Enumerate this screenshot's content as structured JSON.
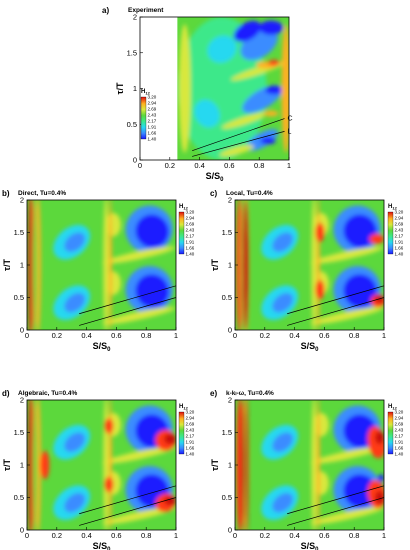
{
  "chart_data": [
    {
      "id": "a",
      "type": "heatmap",
      "panel_label": "a)",
      "title": "Experiment",
      "xlabel": "S/S",
      "xlabel_sub": "0",
      "ylabel": "τ/T",
      "xlim": [
        0,
        1
      ],
      "ylim": [
        0,
        2
      ],
      "x_ticks": [
        "0",
        "0.2",
        "0.4",
        "0.6",
        "0.8",
        "1"
      ],
      "y_ticks": [
        "0",
        "0.5",
        "1",
        "1.5",
        "2"
      ],
      "data_x_range": [
        0.25,
        1.0
      ],
      "colorbar": {
        "title": "H",
        "title_sub": "12",
        "levels": [
          "3.20",
          "2.94",
          "2.69",
          "2.43",
          "2.17",
          "1.91",
          "1.66",
          "1.40"
        ]
      },
      "lines": [
        {
          "label": "C",
          "x": [
            0.35,
            0.97
          ],
          "y": [
            0.13,
            0.58
          ]
        },
        {
          "label": "L",
          "x": [
            0.35,
            0.97
          ],
          "y": [
            0.05,
            0.4
          ]
        }
      ]
    },
    {
      "id": "b",
      "type": "heatmap",
      "panel_label": "b)",
      "title": "Direct, Tu=0.4%",
      "xlabel": "S/S",
      "xlabel_sub": "0",
      "ylabel": "τ/T",
      "xlim": [
        0,
        1
      ],
      "ylim": [
        0,
        2
      ],
      "x_ticks": [
        "0",
        "0.2",
        "0.4",
        "0.6",
        "0.8",
        "1"
      ],
      "y_ticks": [
        "0",
        "0.5",
        "1",
        "1.5",
        "2"
      ],
      "colorbar": {
        "title": "H",
        "title_sub": "12",
        "levels": [
          "3.20",
          "2.94",
          "2.69",
          "2.43",
          "2.17",
          "1.91",
          "1.66",
          "1.40"
        ]
      },
      "lines": [
        {
          "label": "",
          "x": [
            0.35,
            1.0
          ],
          "y": [
            0.25,
            0.68
          ]
        },
        {
          "label": "",
          "x": [
            0.35,
            1.0
          ],
          "y": [
            0.07,
            0.5
          ]
        }
      ]
    },
    {
      "id": "c",
      "type": "heatmap",
      "panel_label": "c)",
      "title": "Local, Tu=0.4%",
      "xlabel": "S/S",
      "xlabel_sub": "0",
      "ylabel": "τ/T",
      "xlim": [
        0,
        1
      ],
      "ylim": [
        0,
        2
      ],
      "x_ticks": [
        "0",
        "0.2",
        "0.4",
        "0.6",
        "0.8",
        "1"
      ],
      "y_ticks": [
        "0",
        "0.5",
        "1",
        "1.5",
        "2"
      ],
      "colorbar": {
        "title": "H",
        "title_sub": "12",
        "levels": [
          "3.20",
          "2.94",
          "2.69",
          "2.43",
          "2.17",
          "1.91",
          "1.66",
          "1.40"
        ]
      },
      "lines": [
        {
          "label": "",
          "x": [
            0.35,
            1.0
          ],
          "y": [
            0.25,
            0.68
          ]
        },
        {
          "label": "",
          "x": [
            0.35,
            1.0
          ],
          "y": [
            0.07,
            0.5
          ]
        }
      ]
    },
    {
      "id": "d",
      "type": "heatmap",
      "panel_label": "d)",
      "title": "Algebraic, Tu=0.4%",
      "xlabel": "S/S",
      "xlabel_sub": "0",
      "ylabel": "τ/T",
      "xlim": [
        0,
        1
      ],
      "ylim": [
        0,
        2
      ],
      "x_ticks": [
        "0",
        "0.2",
        "0.4",
        "0.6",
        "0.8",
        "1"
      ],
      "y_ticks": [
        "0",
        "0.5",
        "1",
        "1.5",
        "2"
      ],
      "colorbar": {
        "title": "H",
        "title_sub": "12",
        "levels": [
          "3.20",
          "2.94",
          "2.69",
          "2.43",
          "2.17",
          "1.91",
          "1.66",
          "1.40"
        ]
      },
      "lines": [
        {
          "label": "",
          "x": [
            0.35,
            1.0
          ],
          "y": [
            0.25,
            0.68
          ]
        },
        {
          "label": "",
          "x": [
            0.35,
            1.0
          ],
          "y": [
            0.07,
            0.5
          ]
        }
      ]
    },
    {
      "id": "e",
      "type": "heatmap",
      "panel_label": "e)",
      "title": "k-kₗ-ω, Tu=0.4%",
      "xlabel": "S/S",
      "xlabel_sub": "0",
      "ylabel": "τ/T",
      "xlim": [
        0,
        1
      ],
      "ylim": [
        0,
        2
      ],
      "x_ticks": [
        "0",
        "0.2",
        "0.4",
        "0.6",
        "0.8",
        "1"
      ],
      "y_ticks": [
        "0",
        "0.5",
        "1",
        "1.5",
        "2"
      ],
      "colorbar": {
        "title": "H",
        "title_sub": "12",
        "levels": [
          "3.20",
          "2.94",
          "2.69",
          "2.43",
          "2.17",
          "1.91",
          "1.66",
          "1.40"
        ]
      },
      "lines": [
        {
          "label": "",
          "x": [
            0.35,
            1.0
          ],
          "y": [
            0.25,
            0.68
          ]
        },
        {
          "label": "",
          "x": [
            0.35,
            1.0
          ],
          "y": [
            0.07,
            0.5
          ]
        }
      ]
    }
  ],
  "colors": {
    "palette": [
      "#1a1aff",
      "#3a8cff",
      "#28d8f0",
      "#3ce88a",
      "#5cd83c",
      "#d8e83c",
      "#ffb020",
      "#ff3a14",
      "#c81010"
    ]
  }
}
